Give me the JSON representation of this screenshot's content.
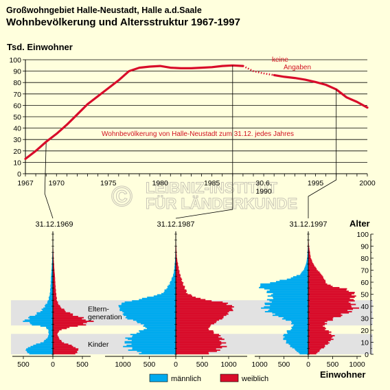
{
  "header": {
    "line1": "Großwohngebiet Halle-Neustadt, Halle a.d.Saale",
    "line2": "Wohnbevölkerung und Altersstruktur 1967-1997"
  },
  "watermark": {
    "line1": "LEIBNIZ-INSTITUT",
    "line2": "FÜR LÄNDERKUNDE",
    "symbol": "©"
  },
  "colors": {
    "male": "#00aaee",
    "female": "#d80c2a",
    "line": "#d80c2a",
    "background": "#ffffdd",
    "band": "#e2e2e2"
  },
  "chart_data": [
    {
      "type": "line",
      "ylabel": "Tsd. Einwohner",
      "ylim": [
        0,
        100
      ],
      "yticks": [
        "0",
        "10",
        "20",
        "30",
        "40",
        "50",
        "60",
        "70",
        "80",
        "90",
        "100"
      ],
      "xlim": [
        1967,
        2000
      ],
      "xticks": [
        "1967",
        "1970",
        "1975",
        "1980",
        "1985",
        "30.6.",
        "1995",
        "2000"
      ],
      "xtick_values": [
        1967,
        1970,
        1975,
        1980,
        1985,
        1990,
        1995,
        2000
      ],
      "xtick_sublabel": "1990",
      "annotation": "Wohnbevölkerung von Halle-Neustadt zum  31.12. jedes Jahres",
      "gap_label": [
        "keine",
        "Angaben"
      ],
      "series": [
        {
          "x": [
            1967,
            1968,
            1969,
            1970,
            1971,
            1972,
            1973,
            1974,
            1975,
            1976,
            1977,
            1978,
            1979,
            1980,
            1981,
            1982,
            1983,
            1984,
            1985,
            1986,
            1987,
            1988
          ],
          "y": [
            13,
            20,
            28,
            35,
            43,
            52,
            61,
            68,
            75,
            82,
            90,
            93,
            94,
            94.5,
            93,
            92.5,
            92.5,
            93,
            93.5,
            94.5,
            95,
            94.5
          ]
        },
        {
          "x": [
            1988,
            1989,
            1990,
            1991
          ],
          "y": [
            94.5,
            90,
            88,
            86.5
          ],
          "style": "dotted"
        },
        {
          "x": [
            1991,
            1992,
            1993,
            1994,
            1995,
            1996,
            1997,
            1998,
            1999,
            2000
          ],
          "y": [
            86.5,
            85,
            84,
            82.5,
            80.5,
            78,
            74,
            67,
            63,
            58
          ]
        }
      ]
    },
    {
      "type": "bar",
      "orientation": "horizontal",
      "title": "Altersstruktur",
      "ylabel": "Alter",
      "xlabel": "Einwohner",
      "yticks": [
        "0",
        "10",
        "20",
        "30",
        "40",
        "50",
        "60",
        "70",
        "80",
        "90",
        "100"
      ],
      "legend": [
        "männlich",
        "weiblich"
      ],
      "bands": [
        {
          "label": "Kinder",
          "age_from": 0,
          "age_to": 17
        },
        {
          "label": "Eltern-",
          "label2": "generation",
          "age_from": 24,
          "age_to": 45
        }
      ],
      "pyramids": [
        {
          "date": "31.12.1969",
          "xticks": [
            "500",
            "0",
            "500"
          ],
          "xtick_values": [
            -500,
            0,
            500
          ],
          "xlim": [
            -550,
            550
          ],
          "age_knots": [
            0,
            3,
            6,
            10,
            14,
            17,
            20,
            22,
            24,
            27,
            30,
            33,
            36,
            40,
            44,
            50,
            56,
            60,
            65,
            70,
            80,
            90,
            100
          ],
          "male": [
            400,
            470,
            390,
            160,
            80,
            70,
            80,
            120,
            330,
            480,
            410,
            280,
            190,
            130,
            80,
            50,
            40,
            35,
            30,
            22,
            10,
            4,
            1
          ],
          "female": [
            380,
            440,
            360,
            150,
            90,
            75,
            140,
            310,
            520,
            630,
            480,
            320,
            200,
            110,
            70,
            55,
            45,
            40,
            35,
            26,
            12,
            5,
            1
          ]
        },
        {
          "date": "31.12.1987",
          "xticks": [
            "1000",
            "500",
            "0",
            "500",
            "1000"
          ],
          "xtick_values": [
            -1000,
            -500,
            0,
            500,
            1000
          ],
          "xlim": [
            -1080,
            1080
          ],
          "age_knots": [
            0,
            3,
            6,
            10,
            14,
            18,
            20,
            22,
            26,
            30,
            34,
            38,
            42,
            46,
            50,
            54,
            58,
            62,
            66,
            70,
            75,
            80,
            90,
            100
          ],
          "male": [
            640,
            820,
            920,
            920,
            880,
            720,
            600,
            560,
            700,
            950,
            1000,
            1080,
            1040,
            620,
            260,
            180,
            120,
            80,
            45,
            30,
            18,
            10,
            4,
            1
          ],
          "female": [
            620,
            800,
            900,
            880,
            860,
            720,
            640,
            620,
            750,
            900,
            1000,
            1100,
            980,
            440,
            220,
            180,
            140,
            110,
            80,
            60,
            40,
            20,
            8,
            2
          ]
        },
        {
          "date": "31.12.1997",
          "xticks": [
            "1000",
            "500",
            "0",
            "500",
            "1000"
          ],
          "xtick_values": [
            -1000,
            -500,
            0,
            500,
            1000
          ],
          "xlim": [
            -1080,
            1080
          ],
          "age_knots": [
            0,
            3,
            6,
            10,
            14,
            18,
            22,
            26,
            30,
            34,
            38,
            42,
            46,
            50,
            54,
            56,
            58,
            62,
            66,
            70,
            75,
            80,
            90,
            100
          ],
          "male": [
            180,
            260,
            360,
            460,
            520,
            440,
            320,
            330,
            560,
            780,
            900,
            840,
            760,
            780,
            880,
            1050,
            930,
            440,
            170,
            90,
            45,
            22,
            6,
            1
          ],
          "female": [
            170,
            240,
            340,
            440,
            520,
            440,
            320,
            360,
            560,
            800,
            960,
            880,
            920,
            950,
            760,
            520,
            380,
            330,
            270,
            180,
            100,
            50,
            12,
            2
          ]
        }
      ]
    }
  ]
}
